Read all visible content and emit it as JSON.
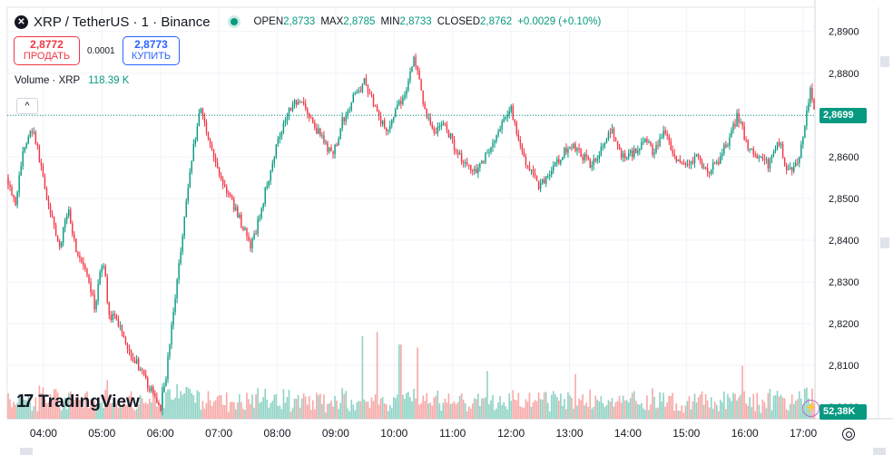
{
  "header": {
    "logo_glyph": "✕",
    "title": "XRP / TetherUS · 1 · Binance",
    "ohlc": [
      {
        "key": "OPEN",
        "value": "2,8733"
      },
      {
        "key": "MAX",
        "value": "2,8785"
      },
      {
        "key": "MIN",
        "value": "2,8733"
      },
      {
        "key": "CLOSED",
        "value": "2,8762"
      },
      {
        "key": "",
        "value": "+0.0029 (+0.10%)"
      }
    ]
  },
  "trade": {
    "sell_price": "2,8772",
    "sell_label": "ПРОДАТЬ",
    "spread": "0.0001",
    "buy_price": "2,8773",
    "buy_label": "КУПИТЬ"
  },
  "volume_legend": {
    "name": "Volume · XRP",
    "value": "118.39 K"
  },
  "collapse_glyph": "^",
  "brand": {
    "mark": "17",
    "name": "TradingView"
  },
  "flash_glyph": "⚡",
  "colors": {
    "up": "#089981",
    "down": "#f23645",
    "up_vol": "#8fd3c5",
    "down_vol": "#f7a9a7",
    "grid": "#f0f3fa"
  },
  "chart_data": {
    "type": "candlestick",
    "y_ticks": [
      "2,8900",
      "2,8800",
      "2,8700",
      "2,8600",
      "2,8500",
      "2,8400",
      "2,8300",
      "2,8200",
      "2,8100",
      "2,8000"
    ],
    "y_tick_values": [
      2.89,
      2.88,
      2.87,
      2.86,
      2.85,
      2.84,
      2.83,
      2.82,
      2.81,
      2.8
    ],
    "ylim": [
      2.7972,
      2.8958
    ],
    "x_ticks": [
      "04:00",
      "05:00",
      "06:00",
      "07:00",
      "08:00",
      "09:00",
      "10:00",
      "11:00",
      "12:00",
      "13:00",
      "14:00",
      "15:00",
      "16:00",
      "17:00"
    ],
    "x_range_hours": [
      3.38,
      17.2
    ],
    "last_price": "2,8699",
    "last_price_value": 2.8699,
    "volume_last": "52,38K",
    "price_path": [
      [
        3.38,
        2.855
      ],
      [
        3.52,
        2.849
      ],
      [
        3.66,
        2.862
      ],
      [
        3.82,
        2.867
      ],
      [
        3.95,
        2.858
      ],
      [
        4.12,
        2.846
      ],
      [
        4.28,
        2.838
      ],
      [
        4.42,
        2.848
      ],
      [
        4.55,
        2.838
      ],
      [
        4.72,
        2.832
      ],
      [
        4.88,
        2.824
      ],
      [
        5.02,
        2.836
      ],
      [
        5.12,
        2.822
      ],
      [
        5.3,
        2.82
      ],
      [
        5.45,
        2.814
      ],
      [
        5.62,
        2.81
      ],
      [
        5.75,
        2.806
      ],
      [
        5.92,
        2.802
      ],
      [
        6.0,
        2.8
      ],
      [
        6.1,
        2.808
      ],
      [
        6.25,
        2.826
      ],
      [
        6.38,
        2.842
      ],
      [
        6.52,
        2.858
      ],
      [
        6.68,
        2.872
      ],
      [
        6.8,
        2.866
      ],
      [
        6.95,
        2.858
      ],
      [
        7.12,
        2.852
      ],
      [
        7.3,
        2.847
      ],
      [
        7.45,
        2.842
      ],
      [
        7.55,
        2.838
      ],
      [
        7.72,
        2.847
      ],
      [
        7.9,
        2.858
      ],
      [
        8.05,
        2.866
      ],
      [
        8.22,
        2.872
      ],
      [
        8.4,
        2.874
      ],
      [
        8.6,
        2.868
      ],
      [
        8.78,
        2.864
      ],
      [
        8.95,
        2.86
      ],
      [
        9.1,
        2.868
      ],
      [
        9.3,
        2.874
      ],
      [
        9.5,
        2.878
      ],
      [
        9.68,
        2.872
      ],
      [
        9.85,
        2.866
      ],
      [
        10.0,
        2.87
      ],
      [
        10.18,
        2.875
      ],
      [
        10.35,
        2.884
      ],
      [
        10.5,
        2.872
      ],
      [
        10.68,
        2.866
      ],
      [
        10.85,
        2.868
      ],
      [
        11.05,
        2.862
      ],
      [
        11.22,
        2.858
      ],
      [
        11.42,
        2.857
      ],
      [
        11.6,
        2.861
      ],
      [
        11.8,
        2.866
      ],
      [
        12.0,
        2.872
      ],
      [
        12.15,
        2.862
      ],
      [
        12.32,
        2.857
      ],
      [
        12.48,
        2.853
      ],
      [
        12.65,
        2.856
      ],
      [
        12.82,
        2.859
      ],
      [
        13.0,
        2.863
      ],
      [
        13.18,
        2.861
      ],
      [
        13.35,
        2.858
      ],
      [
        13.55,
        2.862
      ],
      [
        13.72,
        2.866
      ],
      [
        13.9,
        2.86
      ],
      [
        14.08,
        2.861
      ],
      [
        14.28,
        2.864
      ],
      [
        14.45,
        2.861
      ],
      [
        14.62,
        2.866
      ],
      [
        14.8,
        2.859
      ],
      [
        15.0,
        2.857
      ],
      [
        15.18,
        2.86
      ],
      [
        15.35,
        2.856
      ],
      [
        15.55,
        2.859
      ],
      [
        15.72,
        2.864
      ],
      [
        15.88,
        2.87
      ],
      [
        16.05,
        2.862
      ],
      [
        16.22,
        2.86
      ],
      [
        16.4,
        2.858
      ],
      [
        16.58,
        2.864
      ],
      [
        16.72,
        2.857
      ],
      [
        16.88,
        2.858
      ],
      [
        17.0,
        2.864
      ],
      [
        17.12,
        2.877
      ],
      [
        17.2,
        2.87
      ]
    ],
    "volume_spikes": [
      [
        9.45,
        0.78
      ],
      [
        9.7,
        0.82
      ],
      [
        10.1,
        0.7
      ],
      [
        10.4,
        0.67
      ],
      [
        15.95,
        0.5
      ],
      [
        13.1,
        0.42
      ],
      [
        11.6,
        0.45
      ]
    ]
  }
}
